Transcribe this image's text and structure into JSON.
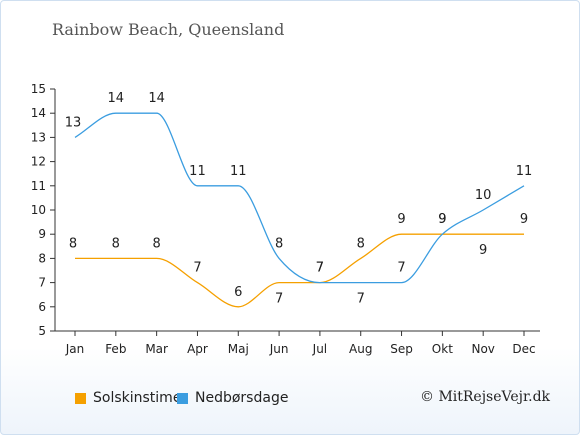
{
  "title": "Rainbow Beach, Queensland",
  "credit": "© MitRejseVejr.dk",
  "colors": {
    "sun": "#f5a000",
    "rain": "#3b9de0",
    "axis": "#333333"
  },
  "chart_data": {
    "type": "line",
    "categories": [
      "Jan",
      "Feb",
      "Mar",
      "Apr",
      "Maj",
      "Jun",
      "Jul",
      "Aug",
      "Sep",
      "Okt",
      "Nov",
      "Dec"
    ],
    "ylim": [
      5,
      15
    ],
    "yticks": [
      5,
      6,
      7,
      8,
      9,
      10,
      11,
      12,
      13,
      14,
      15
    ],
    "grid": false,
    "legend_position": "bottom",
    "series": [
      {
        "name": "Solskinstimer",
        "color": "#f5a000",
        "values": [
          8,
          8,
          8,
          7,
          6,
          7,
          7,
          8,
          9,
          9,
          9,
          9
        ]
      },
      {
        "name": "Nedbørsdage",
        "color": "#3b9de0",
        "values": [
          13,
          14,
          14,
          11,
          11,
          8,
          7,
          7,
          7,
          9,
          10,
          11
        ]
      }
    ]
  }
}
